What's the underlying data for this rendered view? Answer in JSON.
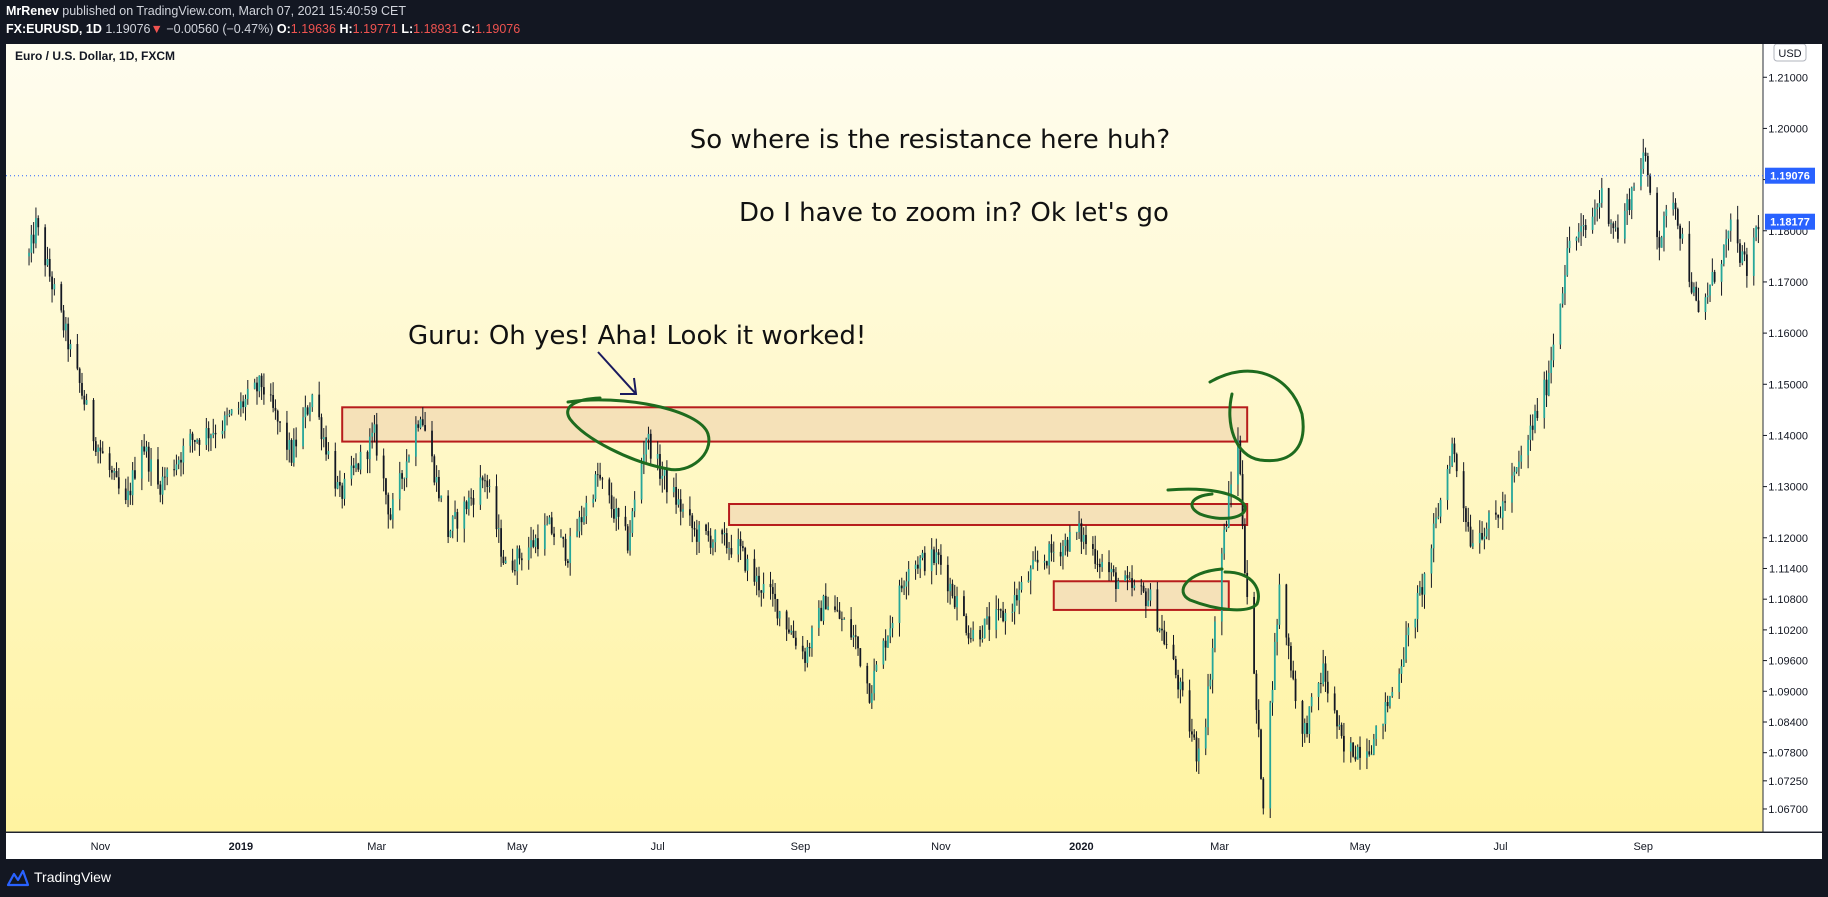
{
  "header": {
    "author": "MrRenev",
    "published_text": "published on TradingView.com, March 07, 2021 15:40:59 CET",
    "symbol": "FX:EURUSD, 1D",
    "last": "1.19076",
    "down_arrow": "▼",
    "change": "−0.00560 (−0.47%)",
    "o_label": "O:",
    "o_value": "1.19636",
    "h_label": "H:",
    "h_value": "1.19771",
    "l_label": "L:",
    "l_value": "1.18931",
    "c_label": "C:",
    "c_value": "1.19076"
  },
  "footer": {
    "brand": "TradingView"
  },
  "colors": {
    "bg_top": "#fffdf0",
    "bg_bottom": "#fff3a0",
    "zone_fill": "#f5e1b8",
    "zone_border": "#b71c1c",
    "circle": "#1e6b1e",
    "arrow": "#1a1a5e",
    "price_badge": "#2962ff",
    "current_line": "#2962ff"
  },
  "chart_data": {
    "type": "candlestick",
    "title": "Euro / U.S. Dollar, 1D, FXCM",
    "currency_label": "USD",
    "ylim": [
      1.0625,
      1.2165
    ],
    "y_ticks": [
      "1.21000",
      "1.20000",
      "1.19000",
      "1.18000",
      "1.17000",
      "1.16000",
      "1.15000",
      "1.14000",
      "1.13000",
      "1.12000",
      "1.11400",
      "1.10800",
      "1.10200",
      "1.09600",
      "1.09000",
      "1.08400",
      "1.07800",
      "1.07250",
      "1.06700"
    ],
    "x_labels": [
      "Nov",
      "2019",
      "Mar",
      "May",
      "Jul",
      "Sep",
      "Nov",
      "2020",
      "Mar",
      "May",
      "Jul",
      "Sep"
    ],
    "price_badges": [
      {
        "value": "1.19076",
        "price": 1.19076,
        "kind": "last"
      },
      {
        "value": "1.18177",
        "price": 1.18177,
        "kind": "mark"
      }
    ],
    "close_path": [
      [
        "2018-10-01",
        1.175
      ],
      [
        "2018-10-04",
        1.181
      ],
      [
        "2018-10-15",
        1.163
      ],
      [
        "2018-10-29",
        1.14
      ],
      [
        "2018-11-12",
        1.126
      ],
      [
        "2018-11-19",
        1.139
      ],
      [
        "2018-11-26",
        1.13
      ],
      [
        "2018-12-10",
        1.139
      ],
      [
        "2018-12-24",
        1.142
      ],
      [
        "2019-01-10",
        1.15
      ],
      [
        "2019-01-23",
        1.136
      ],
      [
        "2019-02-01",
        1.148
      ],
      [
        "2019-02-13",
        1.128
      ],
      [
        "2019-02-28",
        1.14
      ],
      [
        "2019-03-07",
        1.124
      ],
      [
        "2019-03-20",
        1.145
      ],
      [
        "2019-04-01",
        1.121
      ],
      [
        "2019-04-17",
        1.132
      ],
      [
        "2019-04-26",
        1.114
      ],
      [
        "2019-05-15",
        1.122
      ],
      [
        "2019-05-23",
        1.117
      ],
      [
        "2019-06-05",
        1.132
      ],
      [
        "2019-06-18",
        1.119
      ],
      [
        "2019-06-26",
        1.14
      ],
      [
        "2019-07-02",
        1.133
      ],
      [
        "2019-07-17",
        1.121
      ],
      [
        "2019-08-05",
        1.118
      ],
      [
        "2019-08-12",
        1.112
      ],
      [
        "2019-08-20",
        1.108
      ],
      [
        "2019-09-03",
        1.097
      ],
      [
        "2019-09-12",
        1.108
      ],
      [
        "2019-09-25",
        1.1
      ],
      [
        "2019-10-01",
        1.09
      ],
      [
        "2019-10-18",
        1.115
      ],
      [
        "2019-10-31",
        1.116
      ],
      [
        "2019-11-14",
        1.101
      ],
      [
        "2019-11-29",
        1.105
      ],
      [
        "2019-12-13",
        1.115
      ],
      [
        "2019-12-31",
        1.121
      ],
      [
        "2020-01-15",
        1.112
      ],
      [
        "2020-01-31",
        1.108
      ],
      [
        "2020-02-10",
        1.095
      ],
      [
        "2020-02-20",
        1.078
      ],
      [
        "2020-02-24",
        1.085
      ],
      [
        "2020-03-02",
        1.117
      ],
      [
        "2020-03-09",
        1.14
      ],
      [
        "2020-03-12",
        1.115
      ],
      [
        "2020-03-20",
        1.069
      ],
      [
        "2020-03-27",
        1.11
      ],
      [
        "2020-04-06",
        1.081
      ],
      [
        "2020-04-15",
        1.094
      ],
      [
        "2020-04-24",
        1.078
      ],
      [
        "2020-05-07",
        1.08
      ],
      [
        "2020-05-15",
        1.09
      ],
      [
        "2020-05-29",
        1.112
      ],
      [
        "2020-06-10",
        1.138
      ],
      [
        "2020-06-18",
        1.12
      ],
      [
        "2020-06-30",
        1.124
      ],
      [
        "2020-07-09",
        1.134
      ],
      [
        "2020-07-21",
        1.15
      ],
      [
        "2020-07-31",
        1.178
      ],
      [
        "2020-08-07",
        1.18
      ],
      [
        "2020-08-14",
        1.187
      ],
      [
        "2020-08-21",
        1.179
      ],
      [
        "2020-09-01",
        1.195
      ],
      [
        "2020-09-08",
        1.178
      ],
      [
        "2020-09-14",
        1.187
      ],
      [
        "2020-09-25",
        1.163
      ],
      [
        "2020-10-09",
        1.18
      ],
      [
        "2020-10-16",
        1.172
      ],
      [
        "2020-10-21",
        1.182
      ]
    ],
    "zones": [
      {
        "from": "2019-02-14",
        "to": "2020-03-13",
        "low": 1.1388,
        "high": 1.1455
      },
      {
        "from": "2019-08-01",
        "to": "2020-03-13",
        "low": 1.1225,
        "high": 1.1266
      },
      {
        "from": "2019-12-20",
        "to": "2020-03-05",
        "low": 1.1059,
        "high": 1.1115
      }
    ],
    "annotations": [
      "So where is the resistance here huh?",
      "Do I have to zoom in? Ok let's go",
      "Guru: Oh yes! Aha! Look it worked!"
    ]
  }
}
